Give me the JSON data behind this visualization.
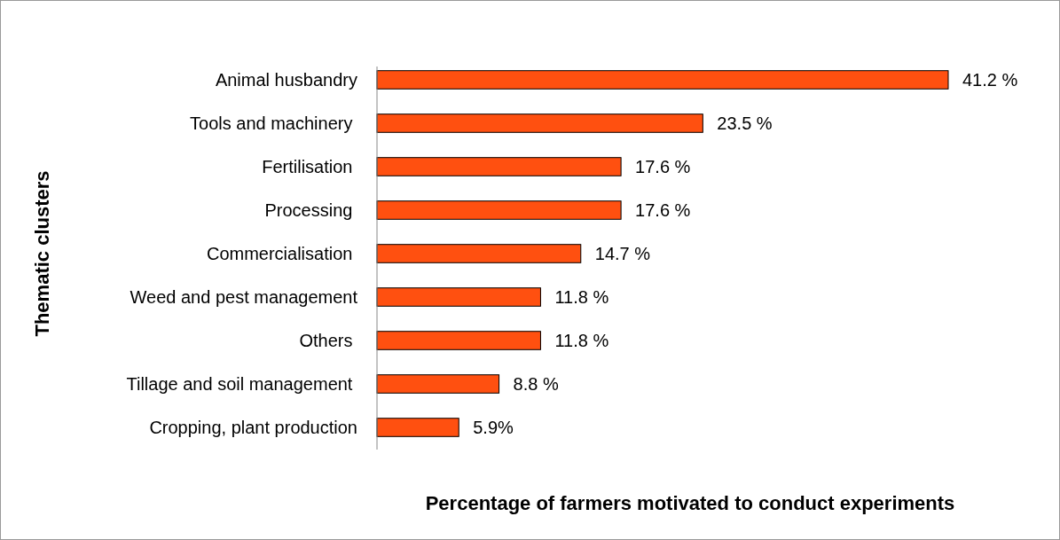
{
  "chart_data": {
    "type": "bar",
    "orientation": "horizontal",
    "xlabel": "Percentage of farmers motivated to conduct experiments",
    "ylabel": "Thematic clusters",
    "categories": [
      "Animal husbandry",
      "Tools and machinery ",
      "Fertilisation ",
      "Processing ",
      "Commercialisation ",
      "Weed and pest management",
      "Others ",
      "Tillage and soil management ",
      "Cropping, plant production"
    ],
    "values": [
      41.2,
      23.5,
      17.6,
      17.6,
      14.7,
      11.8,
      11.8,
      8.8,
      5.9
    ],
    "value_labels": [
      "41.2 %",
      "23.5 %",
      "17.6 %",
      "17.6 %",
      "14.7 %",
      "11.8 %",
      "11.8 %",
      "8.8 %",
      "5.9%"
    ],
    "color": "#ff5010"
  }
}
